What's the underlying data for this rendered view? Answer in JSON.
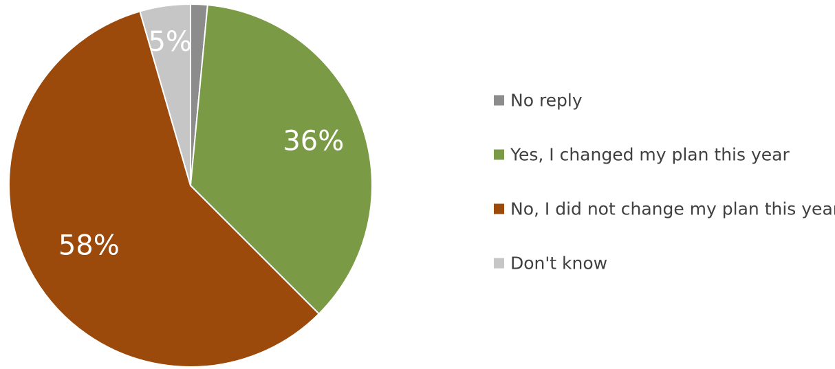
{
  "chart_data": {
    "type": "pie",
    "legend_position": "right",
    "slices": [
      {
        "label": "No reply",
        "value": 1.5,
        "display": "",
        "color": "#8c8c8c"
      },
      {
        "label": "Yes, I changed my plan this year",
        "value": 36,
        "display": "36%",
        "color": "#7a9a46"
      },
      {
        "label": "No, I did not change my plan this year",
        "value": 58,
        "display": "58%",
        "color": "#9c4a0c"
      },
      {
        "label": "Don't know",
        "value": 4.5,
        "display": "5%",
        "color": "#c6c6c6"
      }
    ]
  }
}
